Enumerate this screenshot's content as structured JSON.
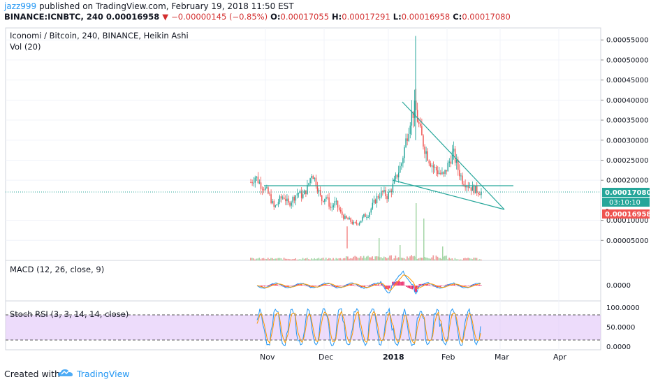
{
  "header": {
    "user": "jazz999",
    "published_text": " published on TradingView.com, February 19, 2018 11:50 EST",
    "symbol_line": {
      "symbol": "BINANCE:ICNBTC, 240",
      "last": "0.00016958",
      "arrow": "▼",
      "change": "−0.00000145 (−0.85%)",
      "o_label": "O:",
      "o": "0.00017055",
      "h_label": "H:",
      "h": "0.00017291",
      "l_label": "L:",
      "l": "0.00016958",
      "c_label": "C:",
      "c": "0.00017080"
    }
  },
  "panes": {
    "main_title": "Iconomi / Bitcoin, 240, BINANCE, Heikin Ashi",
    "vol_label": "Vol (20)",
    "macd_label": "MACD (12, 26, close, 9)",
    "stoch_label": "Stoch RSI (3, 3, 14, 14, close)"
  },
  "price_axis": {
    "ticks": [
      "0.00055000",
      "0.00050000",
      "0.00045000",
      "0.00040000",
      "0.00035000",
      "0.00030000",
      "0.00025000",
      "0.00020000",
      "0.00010000",
      "0.00005000"
    ],
    "badge_close": "0.00017080",
    "badge_timer": "03:10:10",
    "badge_partial": "0",
    "badge_low": "0.00016958",
    "macd_tick": "0.0000",
    "stoch_ticks": [
      "100.0000",
      "50.0000",
      "0.0000"
    ]
  },
  "time_axis": {
    "labels": [
      "Nov",
      "Dec",
      "2018",
      "Feb",
      "Mar",
      "Apr"
    ]
  },
  "footer": {
    "created_with": "Created with",
    "brand": "TradingView"
  },
  "colors": {
    "up": "#26a69a",
    "down": "#ef5350",
    "trendline": "#26a69a",
    "close_line": "#26a69a",
    "stoch_band": "#e1c4f9",
    "macd_line": "#2196f3",
    "signal_line": "#ff9800",
    "hist": "#e91e63",
    "price_badge": "#26a69a",
    "low_badge": "#ef5350",
    "timer_badge": "#26a69a"
  },
  "chart_data": [
    {
      "type": "candlestick",
      "title": "Iconomi / Bitcoin, 240, BINANCE, Heikin Ashi",
      "ylim": [
        0,
        0.00058
      ],
      "x_labels": [
        "Nov",
        "Dec",
        "2018",
        "Feb",
        "Mar",
        "Apr"
      ],
      "last_close": 0.0001708,
      "low": 0.00016958,
      "series_closes_approx": [
        0.000195,
        0.00021,
        0.00019,
        0.00018,
        0.00016,
        0.00013,
        0.00015,
        0.00016,
        0.00014,
        0.000155,
        0.00017,
        0.00016,
        0.00018,
        0.00022,
        0.00019,
        0.00015,
        0.00016,
        0.00013,
        0.000145,
        0.00012,
        0.000105,
        0.0001,
        9e-05,
        9.5e-05,
        0.00011,
        0.000115,
        0.00014,
        0.00016,
        0.00017,
        0.00016,
        0.00018,
        0.00021,
        0.00024,
        0.0003,
        0.00036,
        0.00038,
        0.00032,
        0.00028,
        0.00025,
        0.00023,
        0.00022,
        0.00021,
        0.00024,
        0.00027,
        0.00023,
        0.0002,
        0.00019,
        0.00018,
        0.000175,
        0.00017
      ]
    },
    {
      "type": "line",
      "title": "MACD (12, 26, close, 9)",
      "ylabel": "0.0000"
    },
    {
      "type": "line",
      "title": "Stoch RSI (3, 3, 14, 14, close)",
      "ylim": [
        0,
        100
      ],
      "band": [
        20,
        80
      ]
    }
  ]
}
